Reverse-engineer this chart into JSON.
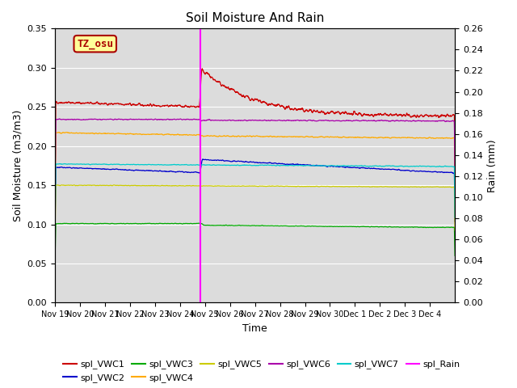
{
  "title": "Soil Moisture And Rain",
  "ylabel_left": "Soil Moisture (m3/m3)",
  "ylabel_right": "Rain (mm)",
  "xlabel": "Time",
  "xlim_days": [
    0,
    16
  ],
  "ylim_left": [
    0,
    0.35
  ],
  "ylim_right": [
    0,
    0.26
  ],
  "yticks_left": [
    0.0,
    0.05,
    0.1,
    0.15,
    0.2,
    0.25,
    0.3,
    0.35
  ],
  "yticks_right": [
    0.0,
    0.02,
    0.04,
    0.06,
    0.08,
    0.1,
    0.12,
    0.14,
    0.16,
    0.18,
    0.2,
    0.22,
    0.24,
    0.26
  ],
  "xtick_labels": [
    "Nov 19",
    "Nov 20",
    "Nov 21",
    "Nov 22",
    "Nov 23",
    "Nov 24",
    "Nov 25",
    "Nov 26",
    "Nov 27",
    "Nov 28",
    "Nov 29",
    "Nov 30",
    "Dec 1",
    "Dec 2",
    "Dec 3",
    "Dec 4"
  ],
  "rain_event_day": 5.8,
  "background_color": "#dcdcdc",
  "box_label": "TZ_osu",
  "box_facecolor": "#ffff99",
  "box_edgecolor": "#aa0000",
  "box_text_color": "#aa0000",
  "series": {
    "spl_VWC1": {
      "color": "#cc0000",
      "label": "spl_VWC1"
    },
    "spl_VWC2": {
      "color": "#0000cc",
      "label": "spl_VWC2"
    },
    "spl_VWC3": {
      "color": "#00aa00",
      "label": "spl_VWC3"
    },
    "spl_VWC4": {
      "color": "#ffaa00",
      "label": "spl_VWC4"
    },
    "spl_VWC5": {
      "color": "#cccc00",
      "label": "spl_VWC5"
    },
    "spl_VWC6": {
      "color": "#aa00aa",
      "label": "spl_VWC6"
    },
    "spl_VWC7": {
      "color": "#00cccc",
      "label": "spl_VWC7"
    },
    "spl_Rain": {
      "color": "#ff00ff",
      "label": "spl_Rain"
    }
  }
}
